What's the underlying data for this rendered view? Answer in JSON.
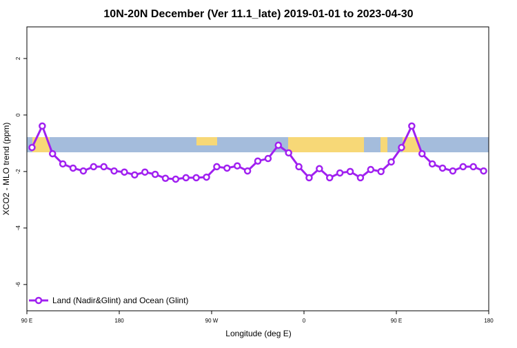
{
  "chart_data": {
    "type": "line",
    "title": "10N-20N December (Ver 11.1_late)   2019-01-01 to 2023-04-30",
    "x_label": "Longitude (deg E)",
    "y_label": "XCO2 - MLO trend (ppm)",
    "x": [
      95,
      105,
      115,
      125,
      135,
      145,
      155,
      165,
      175,
      185,
      195,
      205,
      215,
      225,
      235,
      245,
      255,
      265,
      275,
      285,
      295,
      305,
      315,
      325,
      335,
      345,
      355,
      365,
      375,
      385,
      395,
      405,
      415,
      425,
      435,
      445,
      455,
      465,
      475,
      485,
      495,
      505,
      515,
      525,
      535
    ],
    "series": [
      {
        "name": "Land (Nadir&Glint) and Ocean (Glint)",
        "color": "#a020f0",
        "values": [
          -1.15,
          -0.39,
          -1.37,
          -1.73,
          -1.88,
          -1.98,
          -1.83,
          -1.83,
          -1.98,
          -2.02,
          -2.12,
          -2.02,
          -2.1,
          -2.24,
          -2.27,
          -2.22,
          -2.22,
          -2.2,
          -1.83,
          -1.88,
          -1.8,
          -1.98,
          -1.63,
          -1.54,
          -1.07,
          -1.34,
          -1.83,
          -2.22,
          -1.9,
          -2.22,
          -2.05,
          -2.0,
          -2.22,
          -1.93,
          -2.0,
          -1.66,
          -1.15,
          -0.39,
          -1.37,
          -1.73,
          -1.88,
          -1.98,
          -1.83,
          -1.83,
          -1.98
        ]
      }
    ],
    "xlim": [
      90,
      540
    ],
    "xticks": [
      {
        "value": 90,
        "label": "90 E"
      },
      180,
      {
        "value": 270,
        "label": "90 W"
      },
      {
        "value": 360,
        "label": "0"
      },
      {
        "value": 450,
        "label": "90 E"
      },
      {
        "value": 540,
        "label": "180"
      }
    ],
    "ylim": [
      -6.93,
      3.12
    ],
    "yticks": [
      -6,
      -4,
      -2,
      0,
      2
    ],
    "legend": "bottom-left"
  }
}
